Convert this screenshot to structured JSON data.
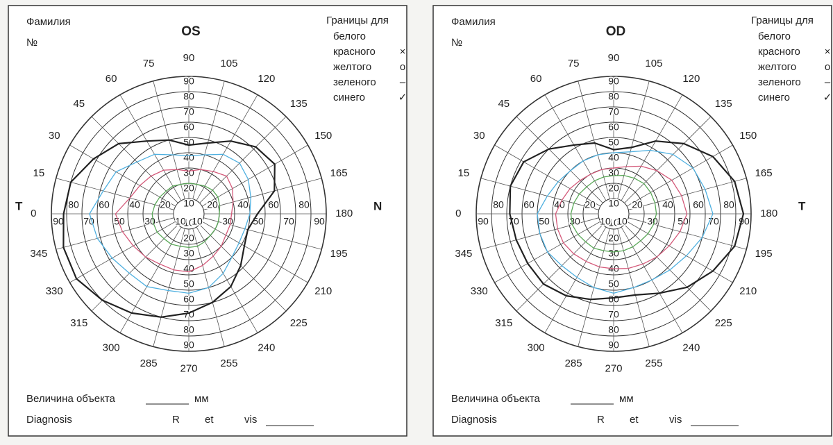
{
  "panels": [
    {
      "name_label": "Фамилия",
      "number_label": "№",
      "eye": "OS",
      "legend_title": "Границы для",
      "legend": [
        {
          "label": "белого"
        },
        {
          "label": "красного",
          "symbol": "×"
        },
        {
          "label": "желтого",
          "symbol": "o"
        },
        {
          "label": "зеленого",
          "symbol": "–"
        },
        {
          "label": "синего",
          "symbol": "✓"
        }
      ],
      "side_left": "T",
      "side_right": "N",
      "meridians": [
        0,
        15,
        30,
        45,
        60,
        75,
        90,
        105,
        120,
        135,
        150,
        165,
        180,
        195,
        210,
        225,
        240,
        255,
        270,
        285,
        300,
        315,
        330,
        345
      ],
      "rings": [
        10,
        20,
        30,
        40,
        50,
        60,
        70,
        80,
        90
      ],
      "isopters": [
        {
          "color": "#222222",
          "values": [
            82,
            80,
            72,
            65,
            55,
            50,
            45,
            48,
            55,
            62,
            65,
            58,
            45,
            40,
            42,
            48,
            55,
            60,
            65,
            70,
            75,
            80,
            85,
            85
          ]
        },
        {
          "color": "#4fb0e0",
          "values": [
            65,
            58,
            55,
            48,
            45,
            40,
            38,
            40,
            45,
            47,
            45,
            42,
            40,
            38,
            38,
            40,
            45,
            50,
            52,
            52,
            55,
            55,
            58,
            62
          ]
        },
        {
          "color": "#d45a7a",
          "values": [
            48,
            40,
            37,
            35,
            33,
            30,
            28,
            30,
            32,
            35,
            33,
            30,
            28,
            28,
            28,
            30,
            32,
            35,
            38,
            38,
            38,
            40,
            42,
            45
          ]
        },
        {
          "color": "#5aa858",
          "values": [
            24,
            23,
            22,
            21,
            21,
            20,
            20,
            20,
            21,
            22,
            22,
            21,
            20,
            20,
            20,
            20,
            21,
            22,
            22,
            22,
            23,
            23,
            24,
            24
          ]
        }
      ],
      "size_label": "Величина объекта",
      "unit": "мм",
      "diagnosis": "Diagnosis",
      "r": "R",
      "et": "et",
      "vis": "vis"
    },
    {
      "name_label": "Фамилия",
      "number_label": "№",
      "eye": "OD",
      "legend_title": "Границы для",
      "legend": [
        {
          "label": "белого"
        },
        {
          "label": "красного",
          "symbol": "×"
        },
        {
          "label": "желтого",
          "symbol": "o"
        },
        {
          "label": "зеленого",
          "symbol": "–"
        },
        {
          "label": "синего",
          "symbol": "✓"
        }
      ],
      "side_right": "T",
      "meridians": [
        0,
        15,
        30,
        45,
        60,
        75,
        90,
        105,
        120,
        135,
        150,
        165,
        180,
        195,
        210,
        225,
        240,
        255,
        270,
        285,
        300,
        315,
        330,
        345
      ],
      "rings": [
        10,
        20,
        30,
        40,
        50,
        60,
        70,
        80,
        90
      ],
      "isopters": [
        {
          "color": "#222222",
          "values": [
            68,
            70,
            68,
            60,
            52,
            48,
            42,
            45,
            55,
            65,
            75,
            82,
            85,
            82,
            75,
            68,
            60,
            55,
            55,
            58,
            62,
            65,
            65,
            66
          ]
        },
        {
          "color": "#4fb0e0",
          "values": [
            50,
            45,
            42,
            40,
            40,
            40,
            40,
            42,
            48,
            55,
            60,
            62,
            65,
            60,
            55,
            52,
            50,
            50,
            52,
            50,
            48,
            48,
            50,
            50
          ]
        },
        {
          "color": "#d45a7a",
          "values": [
            38,
            35,
            33,
            31,
            30,
            30,
            30,
            32,
            36,
            40,
            44,
            46,
            48,
            45,
            42,
            40,
            38,
            37,
            36,
            36,
            36,
            37,
            38,
            38
          ]
        },
        {
          "color": "#5aa858",
          "values": [
            28,
            27,
            26,
            25,
            25,
            25,
            25,
            26,
            27,
            28,
            28,
            28,
            28,
            27,
            26,
            25,
            25,
            25,
            25,
            25,
            26,
            26,
            27,
            28
          ]
        }
      ],
      "size_label": "Величина объекта",
      "unit": "мм",
      "diagnosis": "Diagnosis",
      "r": "R",
      "et": "et",
      "vis": "vis"
    }
  ]
}
